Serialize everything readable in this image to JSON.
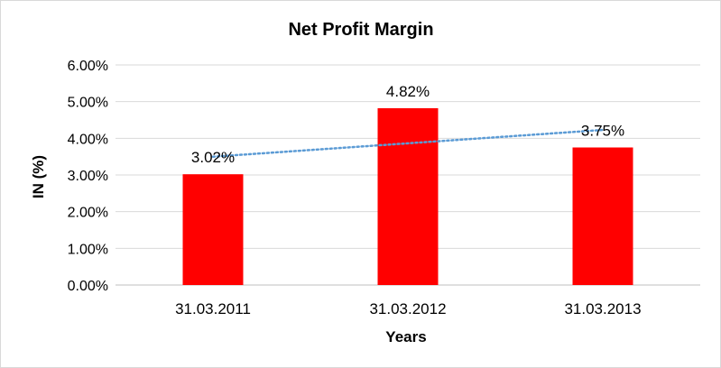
{
  "chart_data": {
    "type": "bar",
    "title": "Net Profit Margin",
    "xlabel": "Years",
    "ylabel": "IN (%)",
    "categories": [
      "31.03.2011",
      "31.03.2012",
      "31.03.2013"
    ],
    "values": [
      3.02,
      4.82,
      3.75
    ],
    "data_labels": [
      "3.02%",
      "4.82%",
      "3.75%"
    ],
    "ylim": [
      0,
      6
    ],
    "yticks": [
      0,
      1,
      2,
      3,
      4,
      5,
      6
    ],
    "ytick_labels": [
      "0.00%",
      "1.00%",
      "2.00%",
      "3.00%",
      "4.00%",
      "5.00%",
      "6.00%"
    ],
    "grid": true,
    "legend": "none",
    "trendline": {
      "type": "linear",
      "style": "dotted"
    },
    "colors": {
      "bar": "#ff0000",
      "trendline": "#5b9bd5",
      "grid": "#d9d9d9",
      "axis": "#bfbfbf"
    }
  }
}
